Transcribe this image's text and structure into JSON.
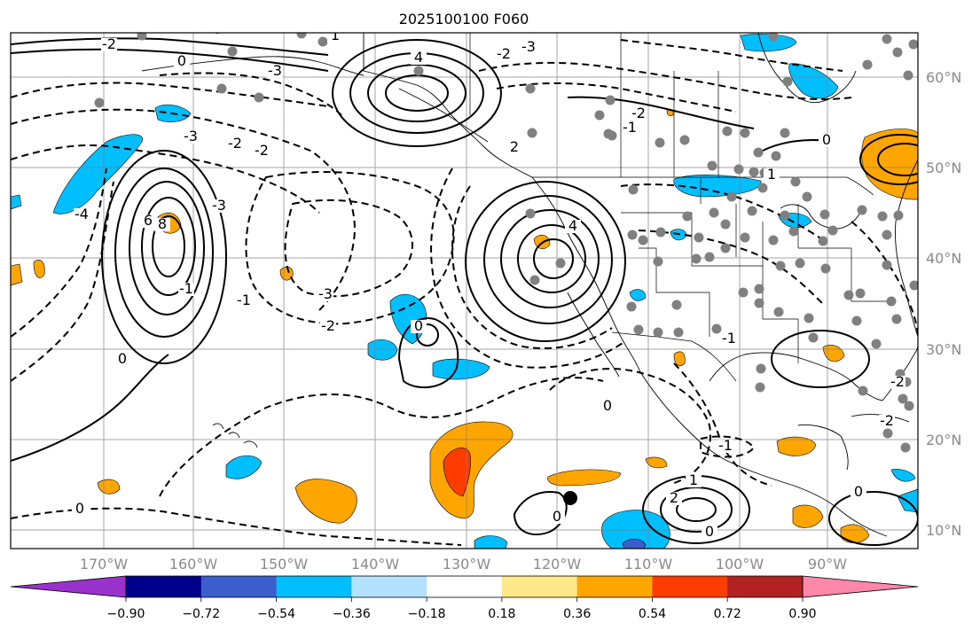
{
  "title": "2025100100 F060",
  "map": {
    "longitude_labels": [
      "170°W",
      "160°W",
      "150°W",
      "140°W",
      "130°W",
      "120°W",
      "110°W",
      "100°W",
      "90°W"
    ],
    "latitude_labels": [
      "60°N",
      "50°N",
      "40°N",
      "30°N",
      "20°N",
      "10°N"
    ],
    "contour_labels": [
      "0",
      "-2",
      "0",
      "-3",
      "-2",
      "-4",
      "6",
      "8",
      "-3",
      "-1",
      "-3",
      "-2",
      "0",
      "-2",
      "-3",
      "4",
      "2",
      "2",
      "-1",
      "-2",
      "0",
      "-3",
      "4",
      "1",
      "0",
      "-1",
      "-2",
      "0",
      "1",
      "2",
      "0",
      "-1",
      "0",
      "-1",
      "0",
      "-2",
      "-2",
      "1",
      "0"
    ],
    "contour_styles": {
      "positive": "solid",
      "negative": "dashed",
      "color": "#000000"
    },
    "station_marker_color": "#808080",
    "highlight_marker_color": "#000000"
  },
  "colorbar": {
    "tick_labels": [
      "−0.90",
      "−0.72",
      "−0.54",
      "−0.36",
      "−0.18",
      "0.18",
      "0.36",
      "0.54",
      "0.72",
      "0.90"
    ],
    "colors": [
      "#9932cc",
      "#00008b",
      "#3a5fcd",
      "#00bfff",
      "#b2e2ff",
      "#ffffff",
      "#ffe88a",
      "#ffa500",
      "#ff3c00",
      "#b22222",
      "#ff88aa"
    ]
  }
}
